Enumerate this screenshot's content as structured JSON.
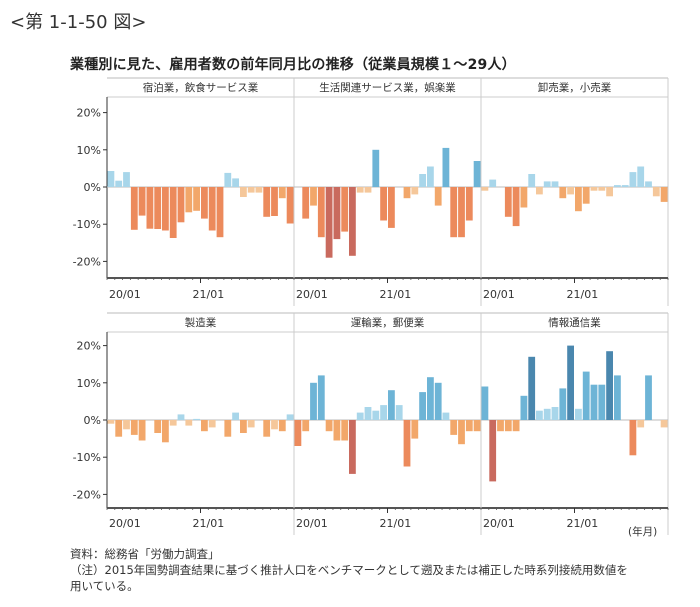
{
  "figure_label": "<第 1-1-50 図>",
  "title": "業種別に見た、雇用者数の前年同月比の推移（従業員規模１～29人）",
  "unit_label": "(年月)",
  "source": "資料：総務省「労働力調査」",
  "note": "（注）2015年国勢調査結果に基づく推計人口をベンチマークとして遡及または補正した時系列接続用数値を",
  "note2": "用いている。",
  "colors": {
    "pos_dark": "#4a87ae",
    "pos_mid": "#6db4d6",
    "pos_light": "#a8d6ea",
    "neg_light": "#f5c79a",
    "neg_mid": "#f2a76a",
    "neg_strong": "#ec8a5c",
    "neg_dark": "#c96a5e"
  },
  "chart_data": {
    "type": "bar",
    "x_tick_labels": [
      "20/01",
      "21/01"
    ],
    "x_period": "2020/01 - 2021/12 (monthly)",
    "yticks": [
      "20%",
      "10%",
      "0%",
      "-10%",
      "-20%"
    ],
    "ylim": [
      -24,
      24
    ],
    "panels": [
      {
        "name": "宿泊業，飲食サービス業",
        "values": [
          4.3,
          1.7,
          4.0,
          -11.5,
          -7.7,
          -11.2,
          -11.3,
          -11.7,
          -13.7,
          -9.5,
          -6.8,
          -6.4,
          -8.5,
          -11.7,
          -13.5,
          3.8,
          2.3,
          -2.7,
          -1.5,
          -1.5,
          -8.0,
          -7.8,
          -3.0,
          -9.8
        ]
      },
      {
        "name": "生活関連サービス業，娯楽業",
        "values": [
          0,
          -8.5,
          -5.0,
          -13.5,
          -19.0,
          -14.0,
          -12.0,
          -18.5,
          -1.5,
          -1.5,
          10.0,
          -9.0,
          -11.0,
          0,
          -3.0,
          -2.0,
          3.5,
          5.5,
          -5.0,
          10.5,
          -13.5,
          -13.5,
          -9.0,
          7.0
        ]
      },
      {
        "name": "卸売業，小売業",
        "values": [
          -1.0,
          2.0,
          0,
          -8.0,
          -10.5,
          -5.5,
          3.5,
          -2.0,
          1.5,
          1.5,
          -3.0,
          -2.0,
          -6.5,
          -4.5,
          -1.0,
          -1.0,
          -2.5,
          0.5,
          0.5,
          4.0,
          5.5,
          1.5,
          -2.5,
          -4.0
        ]
      },
      {
        "name": "製造業",
        "values": [
          -1.0,
          -4.5,
          -2.5,
          -4.0,
          -5.5,
          0,
          -3.5,
          -6.0,
          -1.5,
          1.5,
          -1.5,
          0.3,
          -3.0,
          -2.0,
          0,
          -4.5,
          2.0,
          -3.5,
          -2.0,
          0,
          -4.5,
          -2.5,
          -3.0,
          1.5
        ]
      },
      {
        "name": "運輸業，郵便業",
        "values": [
          -7.0,
          -3.0,
          10.0,
          12.0,
          -3.0,
          -5.5,
          -5.5,
          -14.5,
          2.0,
          3.5,
          2.5,
          4.0,
          8.0,
          4.0,
          -12.5,
          -5.0,
          7.5,
          11.5,
          10.0,
          2.0,
          -4.0,
          -6.5,
          -3.0,
          -3.0
        ]
      },
      {
        "name": "情報通信業",
        "values": [
          9.0,
          -16.5,
          -3.0,
          -3.0,
          -3.0,
          6.5,
          17.0,
          2.5,
          3.0,
          3.5,
          8.5,
          20.0,
          3.0,
          13.0,
          9.5,
          9.5,
          18.5,
          12.0,
          0,
          -9.5,
          -2.0,
          12.0,
          0,
          -2.0
        ]
      }
    ]
  }
}
